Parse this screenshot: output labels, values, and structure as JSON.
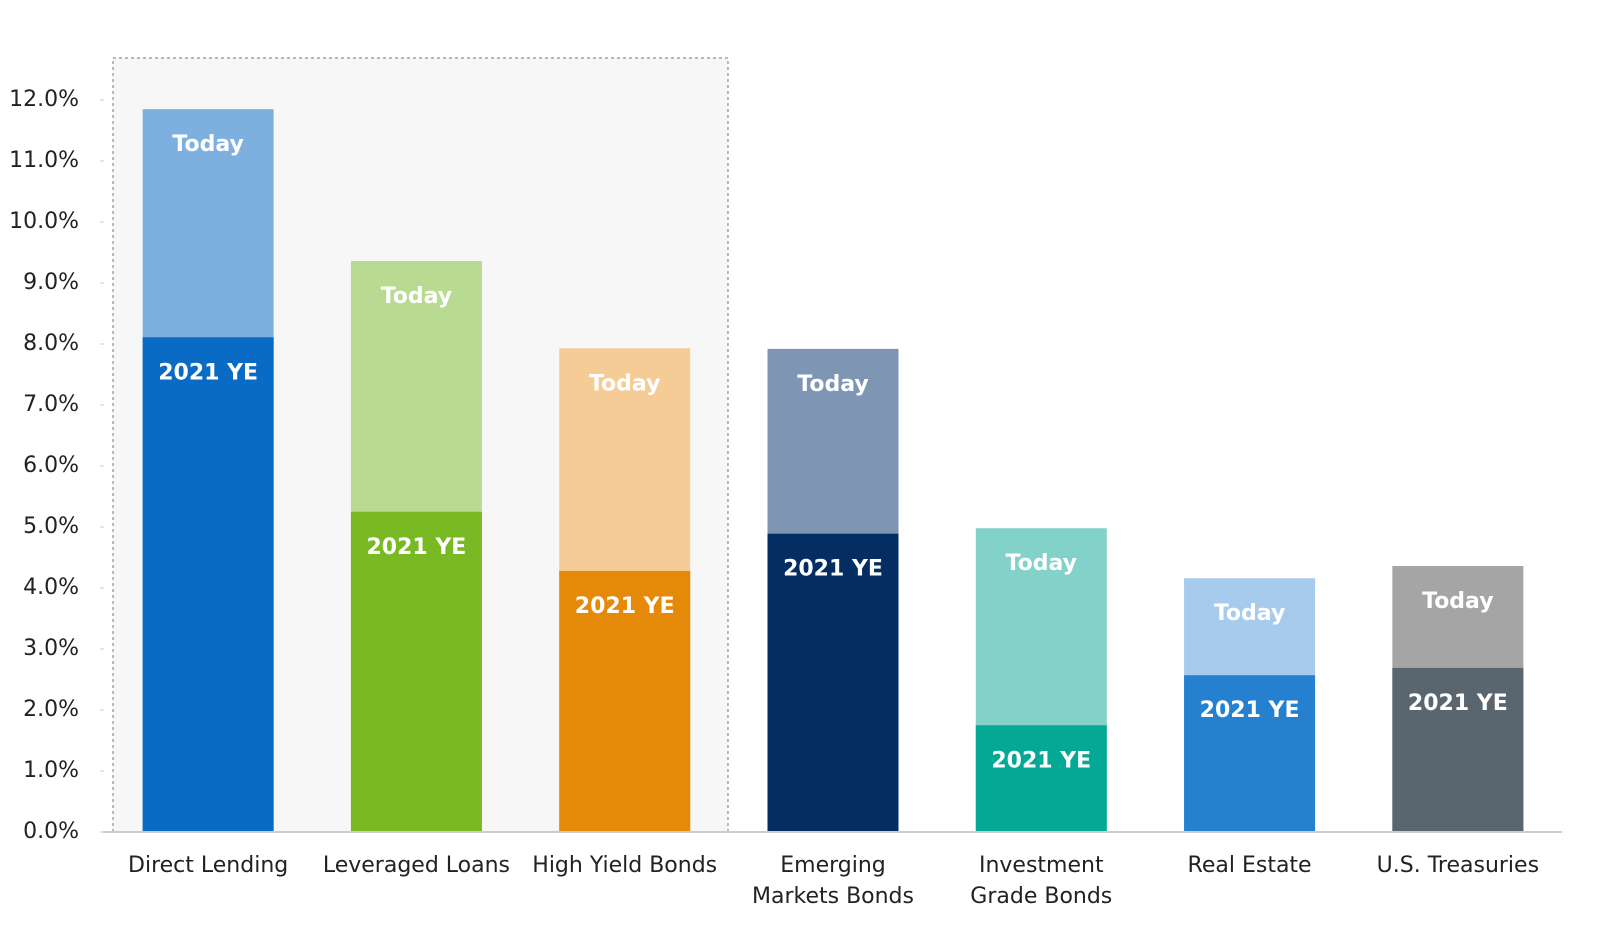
{
  "chart_data": {
    "type": "bar",
    "categories": [
      "Direct Lending",
      "Leveraged Loans",
      "High Yield Bonds",
      "Emerging\nMarkets Bonds",
      "Investment\nGrade Bonds",
      "Real Estate",
      "U.S. Treasuries"
    ],
    "series": [
      {
        "name": "Today",
        "colors": [
          "#7eb0df",
          "#b8da91",
          "#f5cc96",
          "#7e96b4",
          "#82d2ca",
          "#a7cbec",
          "#a5a5a5"
        ],
        "values": [
          11.85,
          9.36,
          7.93,
          7.92,
          4.98,
          4.16,
          4.36
        ]
      },
      {
        "name": "2021 YE",
        "colors": [
          "#0a6bc4",
          "#78b924",
          "#e58a08",
          "#032d63",
          "#03a994",
          "#2580cf",
          "#596670"
        ],
        "values": [
          8.11,
          5.25,
          4.28,
          4.89,
          1.75,
          2.57,
          2.69
        ]
      }
    ],
    "ylim": [
      0,
      12
    ],
    "yticks": [
      {
        "value": 0,
        "label": "0.0%"
      },
      {
        "value": 1,
        "label": "1.0%"
      },
      {
        "value": 2,
        "label": "2.0%"
      },
      {
        "value": 3,
        "label": "3.0%"
      },
      {
        "value": 4,
        "label": "4.0%"
      },
      {
        "value": 5,
        "label": "5.0%"
      },
      {
        "value": 6,
        "label": "6.0%"
      },
      {
        "value": 7,
        "label": "7.0%"
      },
      {
        "value": 8,
        "label": "8.0%"
      },
      {
        "value": 9,
        "label": "9.0%"
      },
      {
        "value": 10,
        "label": "10.0%"
      },
      {
        "value": 11,
        "label": "11.0%"
      },
      {
        "value": 12,
        "label": "12.0%"
      }
    ]
  }
}
